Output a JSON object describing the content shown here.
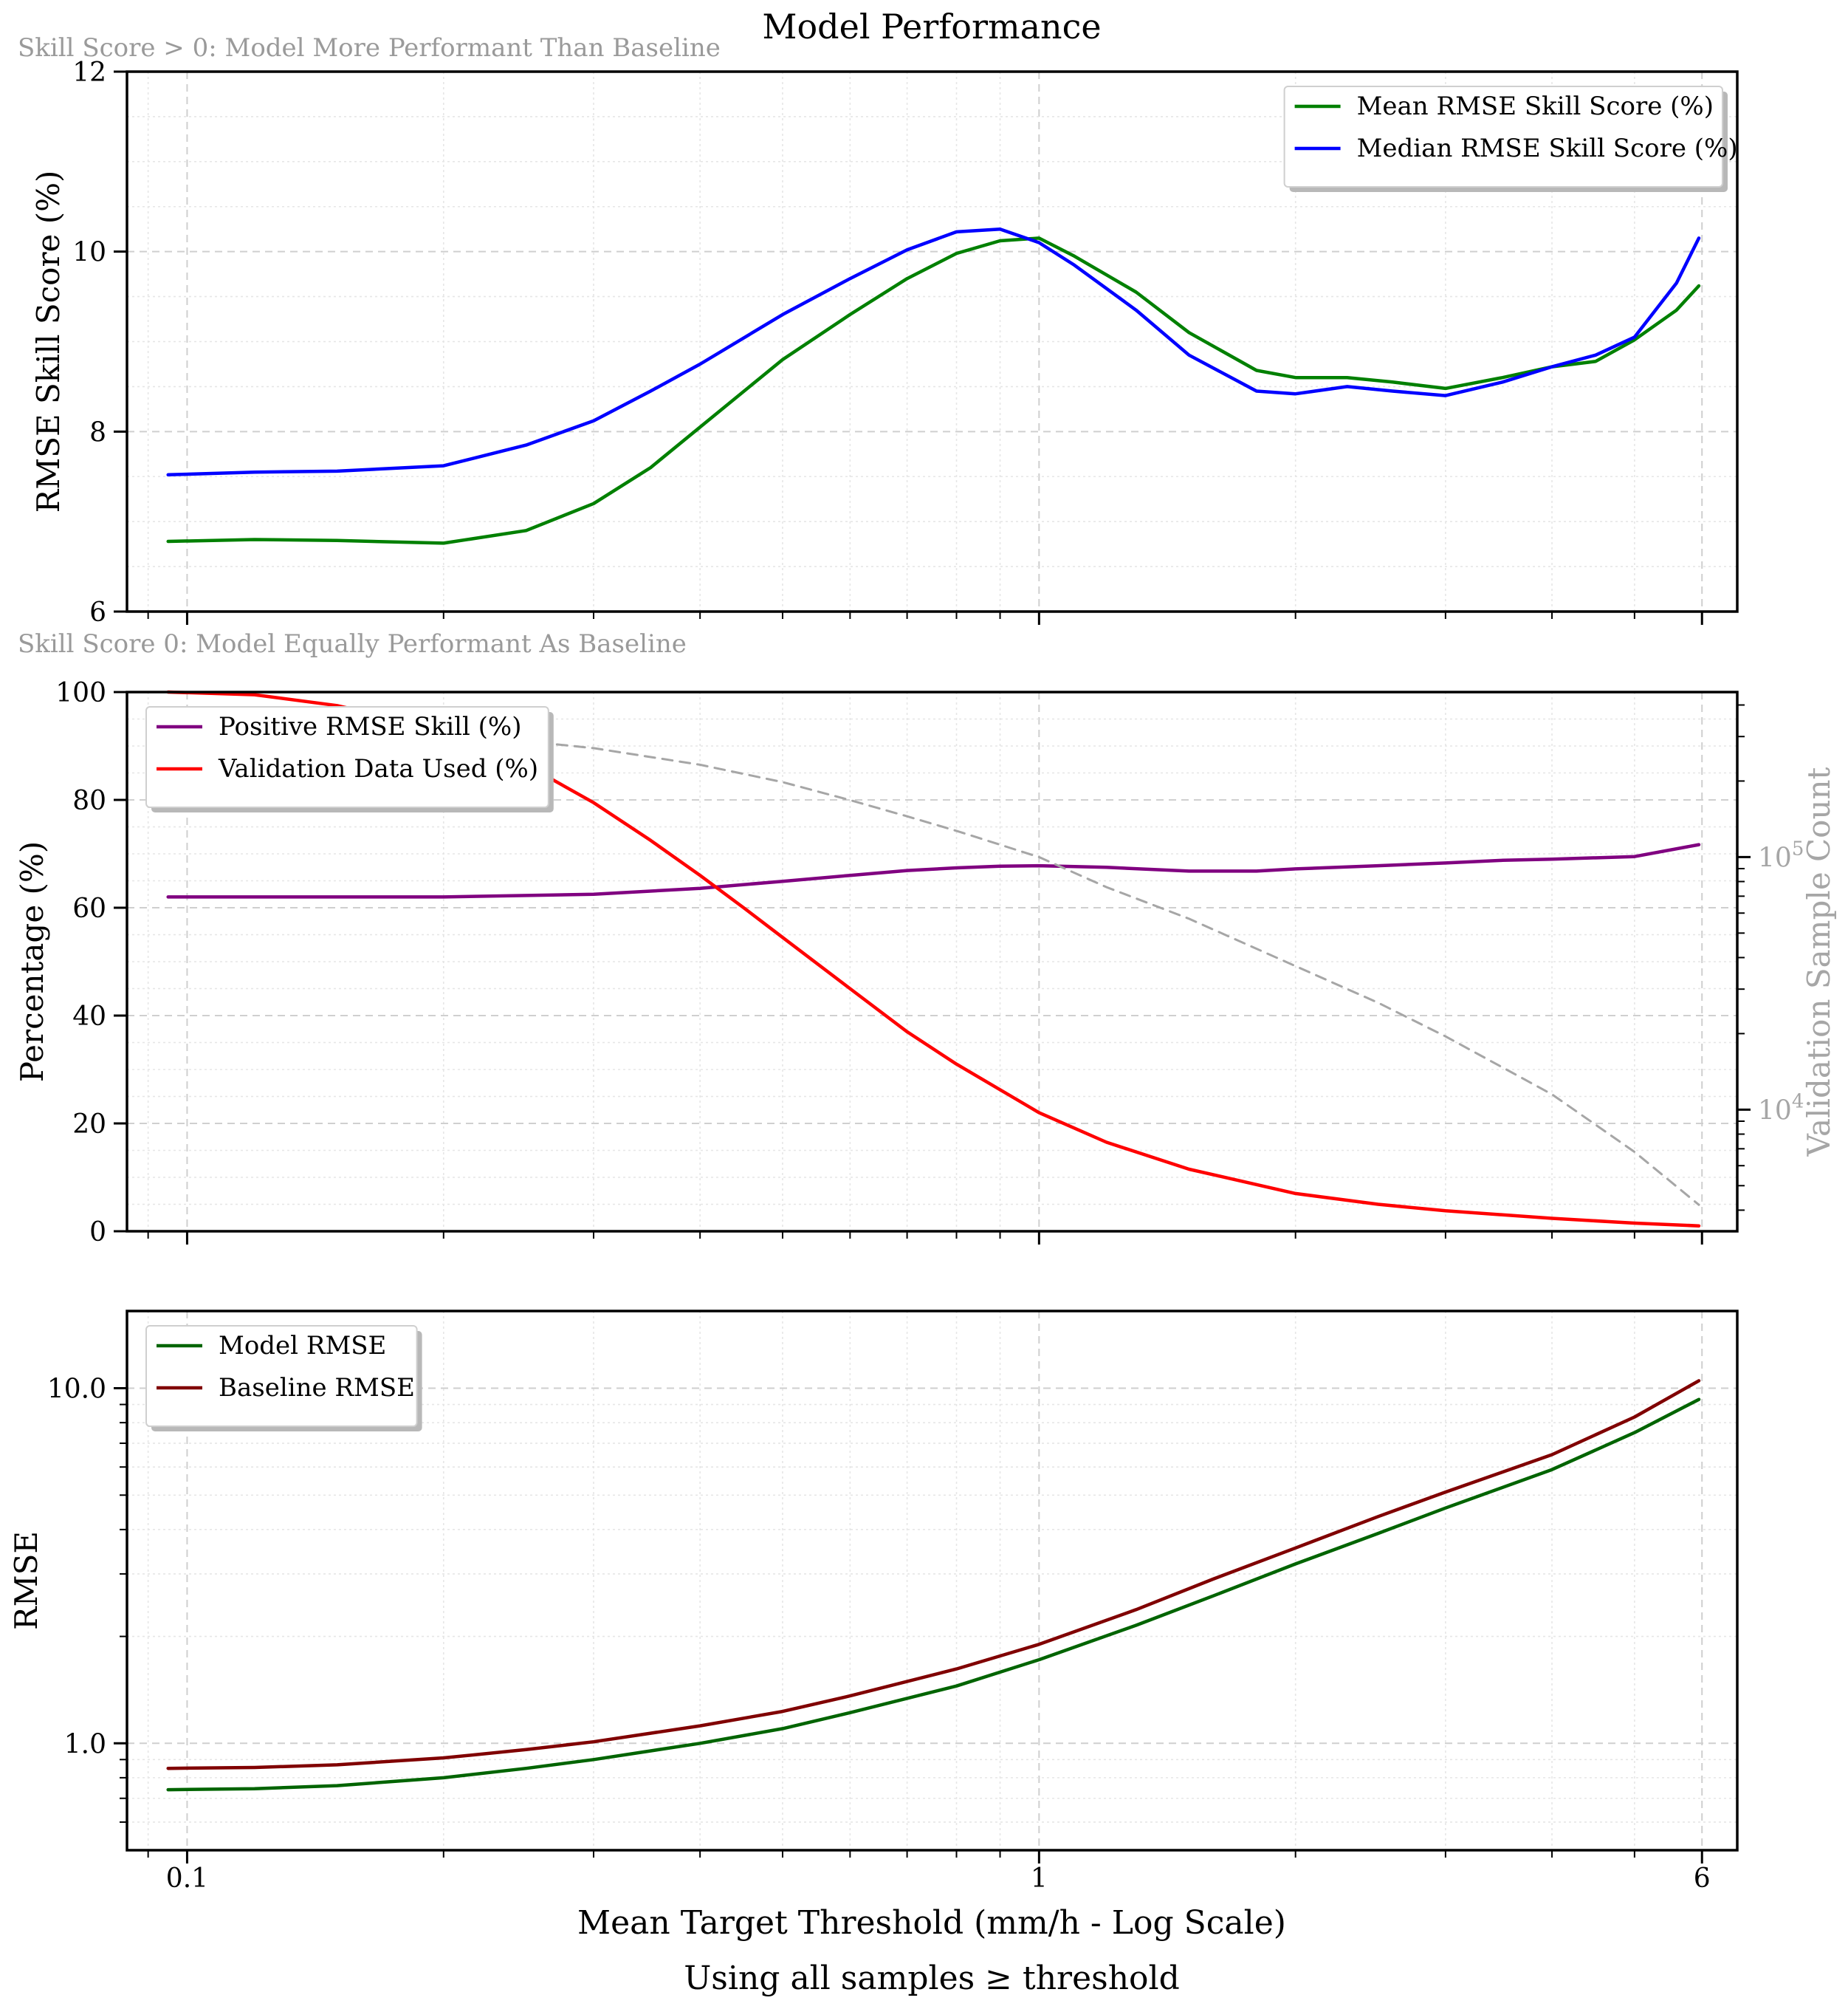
{
  "title": "Model Performance",
  "notes": {
    "top": "Skill Score > 0: Model More Performant Than Baseline",
    "middle": "Skill Score 0: Model Equally Performant As Baseline"
  },
  "x_axis": {
    "label": "Mean Target Threshold (mm/h - Log Scale)",
    "caption": "Using all samples ≥ threshold",
    "scale": "log",
    "lim": [
      0.085,
      6.6
    ],
    "ticks": [
      0.1,
      1,
      6
    ],
    "tick_labels": [
      "0.1",
      "1",
      "6"
    ]
  },
  "chart_data": [
    {
      "type": "line",
      "ylabel": "RMSE Skill Score (%)",
      "ylim": [
        6,
        12
      ],
      "yticks": [
        6,
        8,
        10,
        12
      ],
      "ytick_labels": [
        "6",
        "8",
        "10",
        "12"
      ],
      "grid": true,
      "legend_placement": "top-right",
      "series": [
        {
          "name": "Mean RMSE Skill Score (%)",
          "color": "#008000",
          "x": [
            0.095,
            0.12,
            0.15,
            0.2,
            0.25,
            0.3,
            0.35,
            0.4,
            0.5,
            0.6,
            0.7,
            0.8,
            0.9,
            1.0,
            1.1,
            1.3,
            1.5,
            1.8,
            2.0,
            2.3,
            2.6,
            3.0,
            3.5,
            4.0,
            4.5,
            5.0,
            5.6,
            5.95
          ],
          "y": [
            6.78,
            6.8,
            6.79,
            6.76,
            6.9,
            7.2,
            7.6,
            8.05,
            8.8,
            9.3,
            9.7,
            9.98,
            10.12,
            10.15,
            9.95,
            9.55,
            9.1,
            8.68,
            8.6,
            8.6,
            8.55,
            8.48,
            8.6,
            8.72,
            8.78,
            9.02,
            9.35,
            9.62
          ]
        },
        {
          "name": "Median RMSE Skill Score (%)",
          "color": "#0000ff",
          "x": [
            0.095,
            0.12,
            0.15,
            0.2,
            0.25,
            0.3,
            0.35,
            0.4,
            0.5,
            0.6,
            0.7,
            0.8,
            0.9,
            1.0,
            1.1,
            1.3,
            1.5,
            1.8,
            2.0,
            2.3,
            2.6,
            3.0,
            3.5,
            4.0,
            4.5,
            5.0,
            5.6,
            5.95
          ],
          "y": [
            7.52,
            7.55,
            7.56,
            7.62,
            7.85,
            8.12,
            8.45,
            8.75,
            9.3,
            9.7,
            10.02,
            10.22,
            10.25,
            10.1,
            9.85,
            9.35,
            8.85,
            8.45,
            8.42,
            8.5,
            8.45,
            8.4,
            8.55,
            8.72,
            8.85,
            9.05,
            9.65,
            10.15
          ]
        }
      ]
    },
    {
      "type": "line",
      "ylabel": "Percentage (%)",
      "ylim": [
        0,
        100
      ],
      "yticks": [
        0,
        20,
        40,
        60,
        80,
        100
      ],
      "ytick_labels": [
        "0",
        "20",
        "40",
        "60",
        "80",
        "100"
      ],
      "secondary_ylabel": "Validation Sample Count",
      "secondary_scale": "log",
      "secondary_ylim": [
        3300,
        450000
      ],
      "secondary_ticks": [
        10000,
        100000
      ],
      "secondary_tick_labels": [
        {
          "base": "10",
          "exp": "4"
        },
        {
          "base": "10",
          "exp": "5"
        }
      ],
      "grid": true,
      "legend_placement": "top-left",
      "series": [
        {
          "name": "Positive RMSE Skill (%)",
          "color": "#800080",
          "x": [
            0.095,
            0.15,
            0.2,
            0.3,
            0.4,
            0.5,
            0.6,
            0.7,
            0.8,
            0.9,
            1.0,
            1.2,
            1.5,
            1.8,
            2.0,
            2.5,
            3.0,
            3.5,
            4.0,
            5.0,
            5.95
          ],
          "y": [
            62.0,
            62.0,
            62.0,
            62.5,
            63.6,
            64.9,
            66.0,
            66.9,
            67.4,
            67.7,
            67.8,
            67.5,
            66.8,
            66.8,
            67.2,
            67.8,
            68.3,
            68.8,
            69.0,
            69.5,
            71.7
          ]
        },
        {
          "name": "Validation Data Used (%)",
          "color": "#ff0000",
          "x": [
            0.095,
            0.12,
            0.15,
            0.2,
            0.25,
            0.3,
            0.35,
            0.4,
            0.45,
            0.5,
            0.6,
            0.7,
            0.8,
            1.0,
            1.2,
            1.5,
            2.0,
            2.5,
            3.0,
            4.0,
            5.0,
            5.95
          ],
          "y": [
            100.0,
            99.5,
            97.5,
            93.0,
            86.5,
            79.5,
            72.5,
            66.0,
            60.0,
            54.5,
            45.0,
            37.0,
            31.0,
            22.0,
            16.5,
            11.5,
            7.0,
            5.0,
            3.8,
            2.4,
            1.5,
            1.0
          ]
        },
        {
          "name": "Validation Sample Count",
          "color": "#a6a6a6",
          "axis": "secondary",
          "dash": true,
          "x": [
            0.095,
            0.15,
            0.2,
            0.3,
            0.4,
            0.5,
            0.6,
            0.7,
            0.8,
            1.0,
            1.2,
            1.5,
            2.0,
            2.5,
            3.0,
            4.0,
            5.0,
            5.95
          ],
          "y": [
            355000,
            330000,
            310000,
            270000,
            232000,
            198000,
            168000,
            145000,
            127000,
            100000,
            76000,
            57000,
            37000,
            26500,
            19500,
            11500,
            6800,
            4200
          ]
        }
      ]
    },
    {
      "type": "line",
      "ylabel": "RMSE",
      "yscale": "log",
      "ylim": [
        0.5,
        16.5
      ],
      "yticks": [
        1.0,
        10.0
      ],
      "ytick_labels": [
        "1.0",
        "10.0"
      ],
      "grid": true,
      "legend_placement": "top-left",
      "series": [
        {
          "name": "Model RMSE",
          "color": "#006400",
          "x": [
            0.095,
            0.12,
            0.15,
            0.2,
            0.25,
            0.3,
            0.4,
            0.5,
            0.6,
            0.8,
            1.0,
            1.3,
            1.6,
            2.0,
            2.5,
            3.0,
            4.0,
            5.0,
            5.95
          ],
          "y": [
            0.74,
            0.745,
            0.76,
            0.8,
            0.85,
            0.9,
            1.0,
            1.1,
            1.22,
            1.45,
            1.72,
            2.15,
            2.6,
            3.2,
            3.9,
            4.6,
            5.9,
            7.5,
            9.3
          ]
        },
        {
          "name": "Baseline RMSE",
          "color": "#800000",
          "x": [
            0.095,
            0.12,
            0.15,
            0.2,
            0.25,
            0.3,
            0.4,
            0.5,
            0.6,
            0.8,
            1.0,
            1.3,
            1.6,
            2.0,
            2.5,
            3.0,
            4.0,
            5.0,
            5.95
          ],
          "y": [
            0.85,
            0.855,
            0.87,
            0.91,
            0.96,
            1.01,
            1.12,
            1.23,
            1.36,
            1.62,
            1.9,
            2.38,
            2.9,
            3.55,
            4.35,
            5.1,
            6.5,
            8.3,
            10.5
          ]
        }
      ]
    }
  ]
}
